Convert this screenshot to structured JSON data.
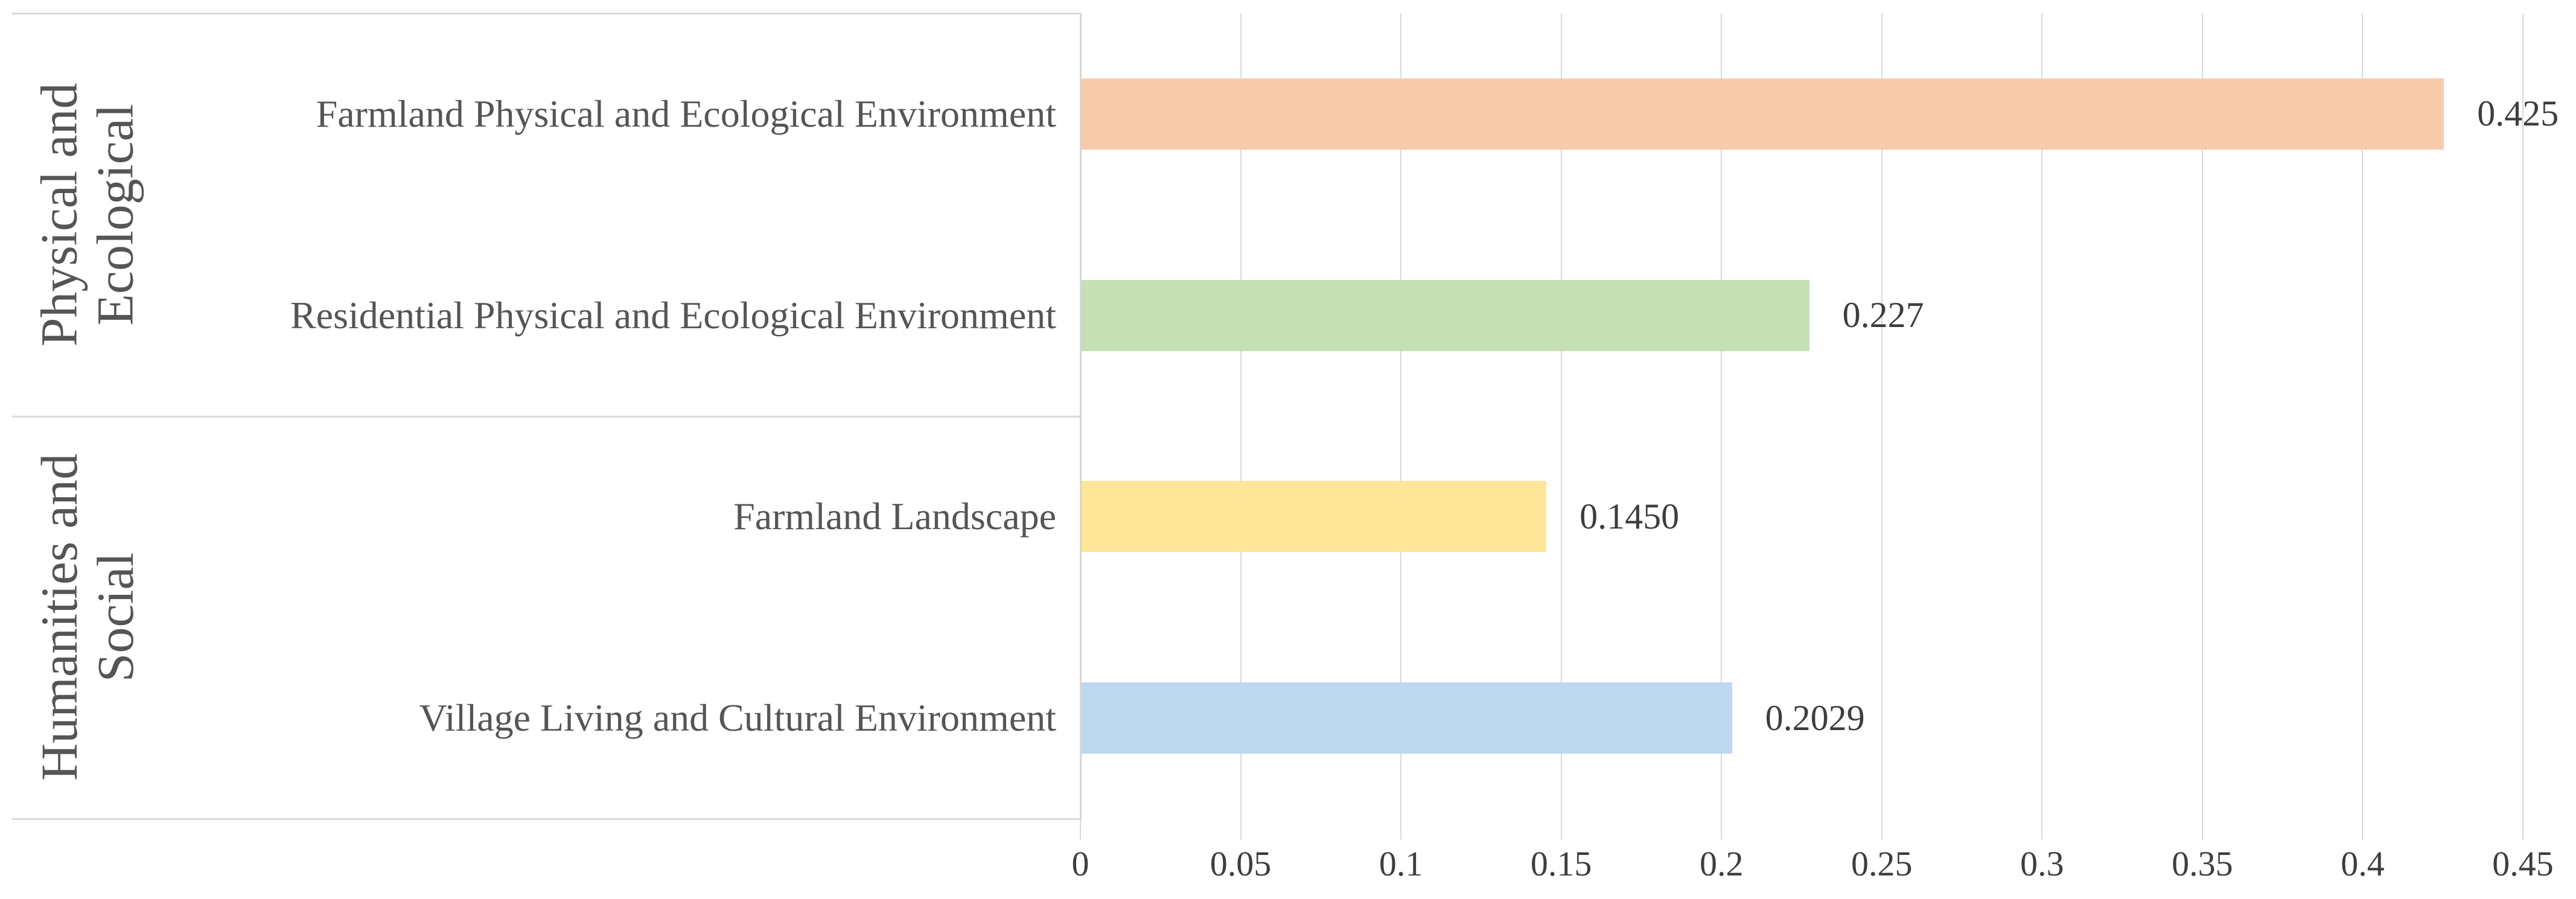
{
  "chart_data": {
    "type": "bar",
    "orientation": "horizontal",
    "title": "",
    "xlabel": "",
    "ylabel": "",
    "grid": true,
    "xlim": [
      0,
      0.45
    ],
    "x_tick_values": [
      0,
      0.05,
      0.1,
      0.15,
      0.2,
      0.25,
      0.3,
      0.35,
      0.4,
      0.45
    ],
    "x_ticks": [
      "0",
      "0.05",
      "0.1",
      "0.15",
      "0.2",
      "0.25",
      "0.3",
      "0.35",
      "0.4",
      "0.45"
    ],
    "groups": [
      {
        "label_lines": [
          "Physical and",
          "Ecological"
        ],
        "category_indices": [
          0,
          1
        ]
      },
      {
        "label_lines": [
          "Humanities and",
          "Social"
        ],
        "category_indices": [
          2,
          3
        ]
      }
    ],
    "categories": [
      "Farmland Physical and Ecological Environment",
      "Residential Physical and Ecological Environment",
      "Farmland Landscape",
      "Village Living and Cultural Environment"
    ],
    "values": [
      0.425,
      0.227,
      0.145,
      0.2029
    ],
    "value_labels": [
      "0.425",
      "0.227",
      "0.1450",
      "0.2029"
    ],
    "bar_colors": [
      "#F8CBAD",
      "#C5E0B4",
      "#FFE699",
      "#BDD7EE"
    ],
    "colors": {
      "gridline": "#d9d9d9",
      "panel_border": "#d9d9d9",
      "category_text": "#555555",
      "value_text": "#3d3d3d"
    }
  }
}
